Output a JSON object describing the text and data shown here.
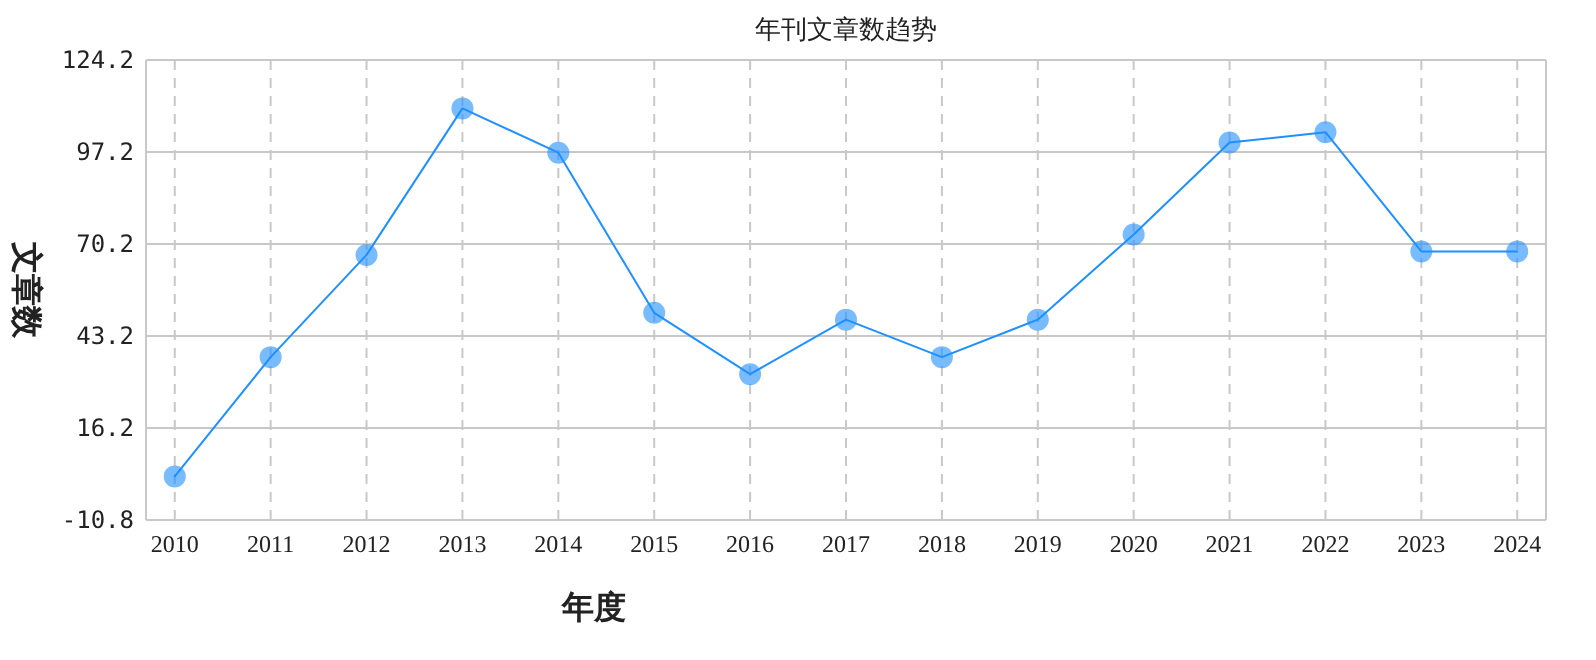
{
  "chart_data": {
    "type": "line",
    "title": "年刊文章数趋势",
    "xlabel": "年度",
    "ylabel": "文章数",
    "categories": [
      "2010",
      "2011",
      "2012",
      "2013",
      "2014",
      "2015",
      "2016",
      "2017",
      "2018",
      "2019",
      "2020",
      "2021",
      "2022",
      "2023",
      "2024"
    ],
    "series": [
      {
        "color": "#1e90ff",
        "values": [
          2,
          37,
          67,
          110,
          97,
          50,
          32,
          48,
          37,
          48,
          73,
          100,
          103,
          68,
          68
        ]
      }
    ],
    "ylim": [
      -10.8,
      124.2
    ],
    "yticks": [
      -10.8,
      16.2,
      43.2,
      70.2,
      97.2,
      124.2
    ],
    "grid": true,
    "marker": "circle",
    "line_style": "solid"
  }
}
